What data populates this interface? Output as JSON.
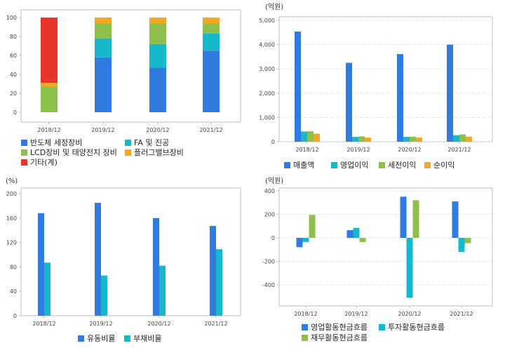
{
  "colors": {
    "blue": "#2f7be0",
    "cyan": "#16b9cc",
    "green": "#8dc04a",
    "orange": "#f5a623",
    "red": "#e8352a",
    "axis": "#bbbbbb",
    "grid": "#dddddd"
  },
  "chart_data": [
    {
      "type": "bar",
      "stacked": true,
      "categories": [
        "2018/12",
        "2019/12",
        "2020/12",
        "2021/12"
      ],
      "ylim": [
        0,
        100
      ],
      "yticks": [
        "0",
        "20",
        "40",
        "60",
        "80",
        "100"
      ],
      "unit_label": "",
      "series": [
        {
          "name": "반도체 세정장비",
          "values": [
            0,
            58,
            47,
            65
          ]
        },
        {
          "name": "LCD장비 및 태양전지 장비",
          "values": [
            27,
            0,
            0,
            0
          ]
        },
        {
          "name": "FA 및 진공",
          "values": [
            0,
            20,
            25,
            18
          ]
        },
        {
          "name": "플러그밸브장비",
          "values": [
            4,
            0,
            0,
            0
          ]
        },
        {
          "name": "기타(계)",
          "values": [
            69,
            0,
            0,
            0
          ]
        }
      ],
      "stack_fill": {
        "values": [
          0,
          16,
          22,
          11
        ],
        "top_cap": [
          0,
          6,
          6,
          6
        ]
      }
    },
    {
      "type": "bar",
      "categories": [
        "2018/12",
        "2019/12",
        "2020/12",
        "2021/12"
      ],
      "ylim": [
        0,
        5000
      ],
      "yticks": [
        "0",
        "1,000",
        "2,000",
        "3,000",
        "4,000",
        "5,000"
      ],
      "unit_label": "(억원)",
      "series": [
        {
          "name": "매출액",
          "values": [
            4540,
            3250,
            3610,
            4000
          ]
        },
        {
          "name": "영업이익",
          "values": [
            420,
            200,
            200,
            270
          ]
        },
        {
          "name": "세전이익",
          "values": [
            430,
            220,
            210,
            300
          ]
        },
        {
          "name": "순이익",
          "values": [
            330,
            170,
            170,
            210
          ]
        }
      ]
    },
    {
      "type": "bar",
      "categories": [
        "2018/12",
        "2019/12",
        "2020/12",
        "2021/12"
      ],
      "ylim": [
        0,
        200
      ],
      "yticks": [
        "0",
        "40",
        "80",
        "120",
        "160",
        "200"
      ],
      "unit_label": "(%)",
      "series": [
        {
          "name": "유동비율",
          "values": [
            168,
            185,
            160,
            147
          ]
        },
        {
          "name": "부채비율",
          "values": [
            87,
            66,
            82,
            109
          ]
        }
      ]
    },
    {
      "type": "bar",
      "categories": [
        "2018/12",
        "2019/12",
        "2020/12",
        "2021/12"
      ],
      "ylim": [
        -500,
        400
      ],
      "yticks": [
        "-400",
        "-200",
        "0",
        "200",
        "400"
      ],
      "unit_label": "(억원)",
      "series": [
        {
          "name": "영업활동현금흐름",
          "values": [
            -80,
            65,
            350,
            310
          ]
        },
        {
          "name": "투자활동현금흐름",
          "values": [
            -35,
            85,
            -510,
            -120
          ]
        },
        {
          "name": "재무활동현금흐름",
          "values": [
            195,
            -35,
            320,
            -45
          ]
        }
      ]
    }
  ]
}
